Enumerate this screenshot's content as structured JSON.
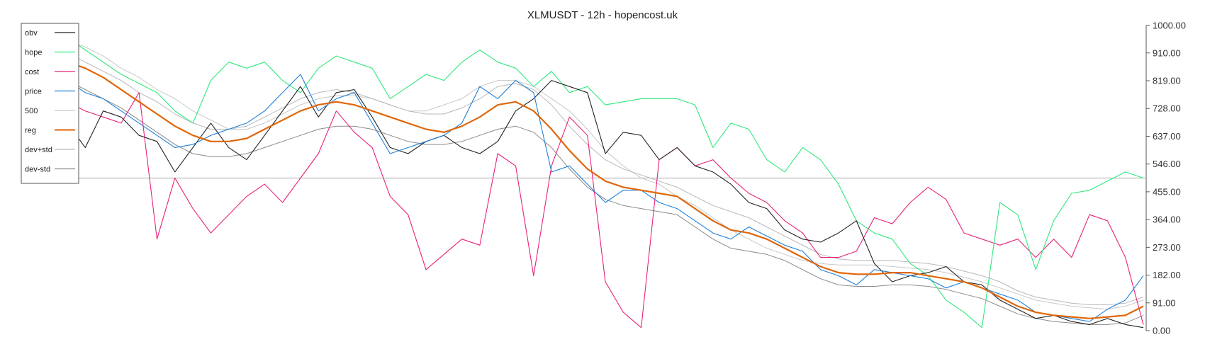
{
  "chart_data": {
    "type": "line",
    "title": "XLMUSDT - 12h - hopencost.uk",
    "xlabel": "",
    "ylabel": "",
    "ylim": [
      0,
      1000
    ],
    "yticks": [
      "0.00",
      "91.00",
      "182.00",
      "273.00",
      "364.00",
      "455.00",
      "546.00",
      "637.00",
      "728.00",
      "819.00",
      "910.00",
      "1000.00"
    ],
    "y_axis_position": "right",
    "legend_position": "top-left",
    "grid": false,
    "reference_line": {
      "y": 500,
      "color": "#bdbdbd"
    },
    "x": [
      0,
      5,
      10,
      15,
      20,
      25,
      30,
      35,
      40,
      45,
      50,
      55,
      60,
      65,
      70,
      75,
      80,
      85,
      90,
      95,
      100,
      105,
      110,
      115,
      120,
      125,
      130,
      135,
      140,
      145,
      150,
      155,
      160,
      165,
      170,
      175,
      180,
      185,
      190,
      195,
      200,
      205,
      210,
      215,
      220,
      225,
      230,
      235,
      240,
      245,
      250,
      255,
      260,
      265,
      270,
      275,
      280,
      285,
      290,
      295,
      300
    ],
    "series": [
      {
        "name": "obv",
        "color": "#222222",
        "width": 1.1,
        "values": [
          680,
          600,
          720,
          700,
          640,
          620,
          520,
          600,
          680,
          600,
          560,
          640,
          720,
          800,
          700,
          780,
          790,
          700,
          600,
          580,
          620,
          640,
          600,
          580,
          620,
          720,
          760,
          820,
          800,
          780,
          580,
          650,
          640,
          560,
          600,
          540,
          520,
          480,
          420,
          400,
          330,
          300,
          290,
          320,
          360,
          220,
          160,
          180,
          190,
          210,
          160,
          150,
          100,
          70,
          40,
          50,
          30,
          20,
          40,
          20,
          10
        ]
      },
      {
        "name": "hope",
        "color": "#2ee87a",
        "width": 1.1,
        "values": [
          960,
          920,
          880,
          840,
          810,
          780,
          720,
          680,
          820,
          880,
          860,
          880,
          820,
          780,
          860,
          900,
          880,
          860,
          760,
          800,
          840,
          820,
          880,
          920,
          880,
          860,
          800,
          850,
          780,
          800,
          740,
          750,
          760,
          760,
          760,
          740,
          600,
          680,
          660,
          560,
          520,
          600,
          560,
          480,
          360,
          320,
          300,
          220,
          180,
          100,
          60,
          10,
          420,
          380,
          200,
          360,
          450,
          460,
          490,
          520,
          500
        ]
      },
      {
        "name": "cost",
        "color": "#e8207a",
        "width": 1.1,
        "values": [
          750,
          720,
          700,
          680,
          780,
          300,
          500,
          400,
          320,
          380,
          440,
          480,
          420,
          500,
          580,
          720,
          650,
          600,
          440,
          380,
          200,
          250,
          300,
          280,
          580,
          540,
          180,
          540,
          700,
          640,
          160,
          60,
          10,
          560,
          600,
          540,
          560,
          500,
          450,
          420,
          360,
          320,
          240,
          240,
          260,
          370,
          350,
          420,
          470,
          430,
          320,
          300,
          280,
          300,
          240,
          300,
          240,
          380,
          360,
          240,
          20
        ]
      },
      {
        "name": "price",
        "color": "#1e7fd6",
        "width": 1.1,
        "values": [
          820,
          780,
          760,
          720,
          680,
          640,
          600,
          610,
          640,
          660,
          680,
          720,
          780,
          840,
          720,
          760,
          780,
          680,
          580,
          600,
          620,
          640,
          680,
          800,
          760,
          820,
          780,
          520,
          540,
          480,
          420,
          460,
          460,
          420,
          400,
          360,
          320,
          300,
          340,
          310,
          280,
          260,
          200,
          180,
          150,
          200,
          190,
          180,
          170,
          140,
          160,
          140,
          120,
          100,
          60,
          50,
          40,
          30,
          70,
          100,
          180
        ]
      },
      {
        "name": "500",
        "color": "#c8c8c8",
        "width": 1.0,
        "values": [
          950,
          930,
          900,
          860,
          830,
          790,
          760,
          720,
          690,
          660,
          660,
          680,
          710,
          740,
          760,
          770,
          770,
          760,
          740,
          720,
          720,
          740,
          760,
          800,
          820,
          820,
          800,
          760,
          720,
          660,
          590,
          540,
          500,
          480,
          440,
          410,
          370,
          330,
          300,
          270,
          250,
          230,
          220,
          215,
          215,
          215,
          210,
          205,
          200,
          190,
          175,
          160,
          140,
          120,
          100,
          90,
          80,
          75,
          70,
          80,
          100
        ]
      },
      {
        "name": "reg",
        "color": "#e0660a",
        "width": 2.2,
        "values": [
          880,
          860,
          830,
          790,
          750,
          710,
          670,
          640,
          620,
          620,
          630,
          660,
          690,
          720,
          740,
          750,
          740,
          720,
          700,
          680,
          660,
          650,
          670,
          700,
          740,
          750,
          720,
          660,
          590,
          530,
          490,
          470,
          460,
          450,
          440,
          400,
          360,
          330,
          320,
          300,
          270,
          240,
          210,
          190,
          185,
          185,
          190,
          190,
          180,
          170,
          160,
          140,
          110,
          80,
          60,
          50,
          45,
          40,
          45,
          50,
          80
        ]
      },
      {
        "name": "dev+std",
        "color": "#b8b8b8",
        "width": 1.0,
        "values": [
          910,
          880,
          850,
          820,
          780,
          750,
          710,
          680,
          660,
          660,
          670,
          700,
          730,
          760,
          780,
          790,
          780,
          760,
          740,
          720,
          710,
          710,
          730,
          760,
          800,
          810,
          790,
          740,
          670,
          610,
          560,
          530,
          510,
          490,
          470,
          440,
          410,
          390,
          370,
          340,
          310,
          280,
          250,
          235,
          230,
          230,
          230,
          225,
          220,
          210,
          195,
          180,
          160,
          130,
          110,
          100,
          90,
          85,
          85,
          90,
          110
        ]
      },
      {
        "name": "dev-std",
        "color": "#8a8a8a",
        "width": 1.0,
        "values": [
          820,
          790,
          760,
          730,
          690,
          650,
          610,
          580,
          570,
          570,
          580,
          600,
          620,
          640,
          660,
          670,
          670,
          660,
          640,
          620,
          610,
          610,
          620,
          640,
          660,
          670,
          650,
          600,
          530,
          470,
          430,
          410,
          400,
          390,
          380,
          340,
          300,
          270,
          260,
          250,
          230,
          200,
          170,
          150,
          145,
          145,
          150,
          150,
          145,
          135,
          120,
          105,
          80,
          55,
          40,
          30,
          25,
          20,
          20,
          25,
          50
        ]
      }
    ]
  }
}
